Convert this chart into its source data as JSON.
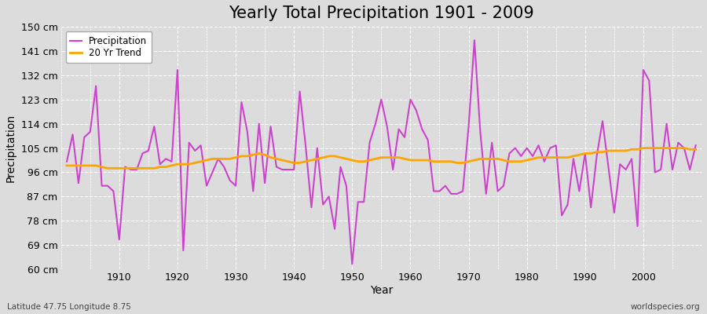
{
  "title": "Yearly Total Precipitation 1901 - 2009",
  "xlabel": "Year",
  "ylabel": "Precipitation",
  "subtitle": "Latitude 47.75 Longitude 8.75",
  "watermark": "worldspecies.org",
  "years": [
    1901,
    1902,
    1903,
    1904,
    1905,
    1906,
    1907,
    1908,
    1909,
    1910,
    1911,
    1912,
    1913,
    1914,
    1915,
    1916,
    1917,
    1918,
    1919,
    1920,
    1921,
    1922,
    1923,
    1924,
    1925,
    1926,
    1927,
    1928,
    1929,
    1930,
    1931,
    1932,
    1933,
    1934,
    1935,
    1936,
    1937,
    1938,
    1939,
    1940,
    1941,
    1942,
    1943,
    1944,
    1945,
    1946,
    1947,
    1948,
    1949,
    1950,
    1951,
    1952,
    1953,
    1954,
    1955,
    1956,
    1957,
    1958,
    1959,
    1960,
    1961,
    1962,
    1963,
    1964,
    1965,
    1966,
    1967,
    1968,
    1969,
    1970,
    1971,
    1972,
    1973,
    1974,
    1975,
    1976,
    1977,
    1978,
    1979,
    1980,
    1981,
    1982,
    1983,
    1984,
    1985,
    1986,
    1987,
    1988,
    1989,
    1990,
    1991,
    1992,
    1993,
    1994,
    1995,
    1996,
    1997,
    1998,
    1999,
    2000,
    2001,
    2002,
    2003,
    2004,
    2005,
    2006,
    2007,
    2008,
    2009
  ],
  "precipitation": [
    100,
    110,
    92,
    109,
    111,
    128,
    91,
    91,
    89,
    71,
    98,
    97,
    97,
    103,
    104,
    113,
    99,
    101,
    100,
    134,
    67,
    107,
    104,
    106,
    91,
    96,
    101,
    98,
    93,
    91,
    122,
    111,
    89,
    114,
    92,
    113,
    98,
    97,
    97,
    97,
    126,
    106,
    83,
    105,
    84,
    87,
    75,
    98,
    91,
    62,
    85,
    85,
    107,
    114,
    123,
    113,
    97,
    112,
    109,
    123,
    119,
    112,
    108,
    89,
    89,
    91,
    88,
    88,
    89,
    113,
    145,
    111,
    88,
    107,
    89,
    91,
    103,
    105,
    102,
    105,
    102,
    106,
    100,
    105,
    106,
    80,
    84,
    101,
    89,
    103,
    83,
    102,
    115,
    98,
    81,
    99,
    97,
    101,
    76,
    134,
    130,
    96,
    97,
    114,
    97,
    107,
    105,
    97,
    106
  ],
  "trend": [
    98.5,
    98.5,
    98.5,
    98.5,
    98.5,
    98.5,
    98.0,
    97.5,
    97.5,
    97.5,
    97.5,
    97.5,
    97.5,
    97.5,
    97.5,
    97.5,
    98.0,
    98.0,
    98.5,
    99.0,
    99.0,
    99.0,
    99.5,
    100.0,
    100.5,
    101.0,
    101.0,
    101.0,
    101.0,
    101.5,
    102.0,
    102.0,
    102.5,
    103.0,
    102.5,
    101.5,
    101.0,
    100.5,
    100.0,
    99.5,
    99.5,
    100.0,
    100.5,
    101.0,
    101.5,
    102.0,
    102.0,
    101.5,
    101.0,
    100.5,
    100.0,
    100.0,
    100.5,
    101.0,
    101.5,
    101.5,
    101.5,
    101.5,
    101.0,
    100.5,
    100.5,
    100.5,
    100.5,
    100.0,
    100.0,
    100.0,
    100.0,
    99.5,
    99.5,
    100.0,
    100.5,
    101.0,
    101.0,
    101.0,
    101.0,
    100.5,
    100.0,
    100.0,
    100.0,
    100.5,
    101.0,
    101.5,
    101.5,
    101.5,
    101.5,
    101.5,
    101.5,
    102.0,
    102.5,
    103.0,
    103.0,
    103.5,
    103.5,
    104.0,
    104.0,
    104.0,
    104.0,
    104.5,
    104.5,
    105.0,
    105.0,
    105.0,
    105.0,
    105.0,
    105.0,
    105.0,
    105.0,
    104.5,
    104.5
  ],
  "precip_color": "#CC44CC",
  "trend_color": "#FFA500",
  "bg_color": "#DCDCDC",
  "plot_bg_color": "#DCDCDC",
  "grid_color": "#FFFFFF",
  "ylim": [
    60,
    150
  ],
  "yticks": [
    60,
    69,
    78,
    87,
    96,
    105,
    114,
    123,
    132,
    141,
    150
  ],
  "ytick_labels": [
    "60 cm",
    "69 cm",
    "78 cm",
    "87 cm",
    "96 cm",
    "105 cm",
    "114 cm",
    "123 cm",
    "132 cm",
    "141 cm",
    "150 cm"
  ],
  "xticks": [
    1910,
    1920,
    1930,
    1940,
    1950,
    1960,
    1970,
    1980,
    1990,
    2000
  ],
  "title_fontsize": 15,
  "label_fontsize": 10,
  "tick_fontsize": 9
}
